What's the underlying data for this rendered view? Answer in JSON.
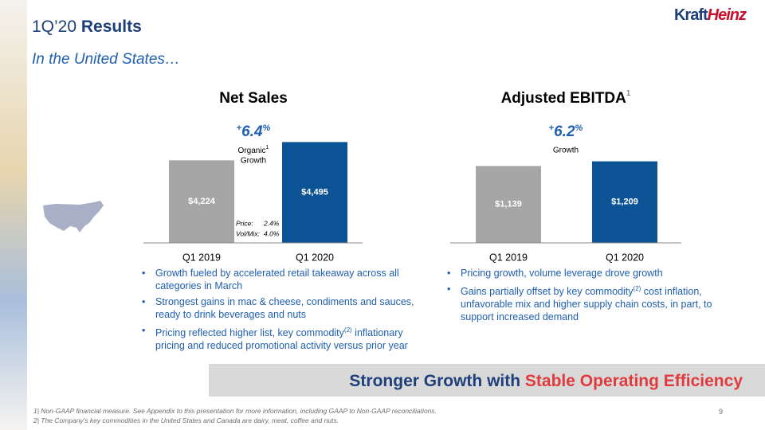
{
  "header": {
    "title": "1Q’20",
    "title_bold": "Results",
    "subtitle": "In the United States…",
    "logo": [
      "Kraft",
      "Heinz"
    ]
  },
  "chart_data": [
    {
      "type": "bar",
      "title": "Net Sales",
      "growth": [
        "+",
        "6.4",
        "%"
      ],
      "growth_caption": [
        "Organic",
        "1",
        "Growth"
      ],
      "categories": [
        "Q1 2019",
        "Q1 2020"
      ],
      "values": [
        4224,
        4495
      ],
      "value_labels": [
        "$4,224",
        "$4,495"
      ],
      "colors": [
        "#a6a6a6",
        "#0b5394"
      ],
      "ylim": [
        3000,
        4700
      ],
      "annotations": [
        [
          "Price:",
          "2.4%"
        ],
        [
          "Vol/Mix:",
          "4.0%"
        ]
      ],
      "bullets": [
        [
          "Growth fueled by accelerated retail takeaway across all categories in March"
        ],
        [
          "Strongest gains in mac & cheese, condiments and sauces, ready to drink beverages and nuts"
        ],
        [
          "Pricing reflected higher list, key commodity",
          "(2)",
          " inflationary pricing and reduced promotional activity versus prior year"
        ]
      ]
    },
    {
      "type": "bar",
      "title": "Adjusted EBITDA",
      "title_note": "1",
      "growth": [
        "+",
        "6.2",
        "%"
      ],
      "growth_caption": [
        "Growth"
      ],
      "categories": [
        "Q1 2019",
        "Q1 2020"
      ],
      "values": [
        1139,
        1209
      ],
      "value_labels": [
        "$1,139",
        "$1,209"
      ],
      "colors": [
        "#a6a6a6",
        "#0b5394"
      ],
      "ylim": [
        0,
        1700
      ],
      "bullets": [
        [
          "Pricing growth, volume leverage drove growth"
        ],
        [
          "Gains partially offset by key commodity",
          "(2)",
          " cost inflation, unfavorable mix and higher supply chain costs, in part, to support increased demand"
        ]
      ]
    }
  ],
  "banner": [
    "Stronger Growth with ",
    "Stable Operating Efficiency"
  ],
  "footnotes": [
    "1| Non-GAAP financial measure. See Appendix to this presentation for more information, including GAAP to Non-GAAP reconciliations.",
    "2| The Company's key commodities in the United States and Canada are dairy, meat, coffee and nuts."
  ],
  "page_number": "9"
}
